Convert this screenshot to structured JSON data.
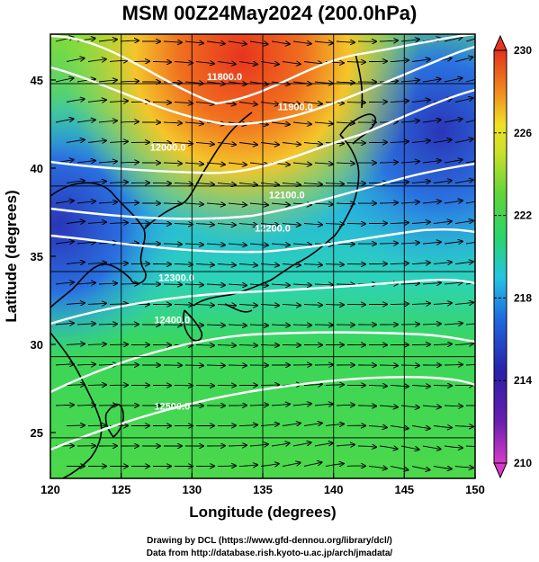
{
  "title": "MSM 00Z24May2024 (200.0hPa)",
  "x_axis": {
    "label": "Longitude (degrees)",
    "ticks": [
      120,
      125,
      130,
      135,
      140,
      145,
      150
    ],
    "range": [
      120,
      150
    ]
  },
  "y_axis": {
    "label": "Latitude  (degrees)",
    "ticks": [
      25,
      30,
      35,
      40,
      45
    ],
    "range": [
      22.4,
      47.6
    ]
  },
  "colorbar": {
    "ticks": [
      "230",
      "226",
      "222",
      "218",
      "214",
      "210"
    ],
    "range": [
      210,
      230
    ],
    "colors": [
      "#d63bc8",
      "#2a1fa8",
      "#1e6ae0",
      "#23c5e0",
      "#2bd46a",
      "#9be02a",
      "#f0e126",
      "#f08a1e",
      "#e2321e"
    ]
  },
  "contours": [
    {
      "label": "11800.0",
      "lon": 132.3,
      "lat": 45.0
    },
    {
      "label": "11900.0",
      "lon": 137.3,
      "lat": 43.3
    },
    {
      "label": "12000.0",
      "lon": 128.3,
      "lat": 41.0
    },
    {
      "label": "12100.0",
      "lon": 136.7,
      "lat": 38.3
    },
    {
      "label": "12200.0",
      "lon": 135.7,
      "lat": 36.4
    },
    {
      "label": "12300.0",
      "lon": 128.9,
      "lat": 33.6
    },
    {
      "label": "12400.0",
      "lon": 128.6,
      "lat": 31.2
    },
    {
      "label": "12500.0",
      "lon": 128.6,
      "lat": 26.3
    }
  ],
  "credits": {
    "line1": "Drawing by DCL (https://www.gfd-dennou.org/library/dcl/)",
    "line2": "Data from http://database.rish.kyoto-u.ac.jp/arch/jmadata/"
  }
}
